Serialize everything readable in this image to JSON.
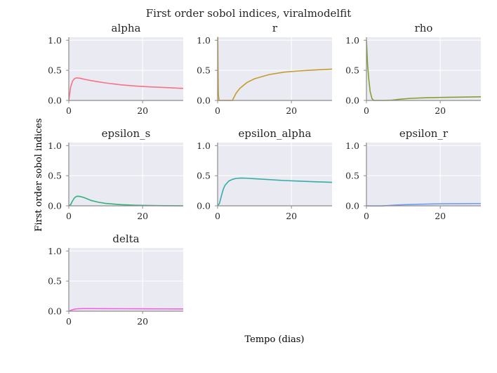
{
  "chart_data": {
    "type": "line",
    "title": "First order sobol indices, viralmodelfit",
    "xlabel": "Tempo (dias)",
    "ylabel": "First order sobol indices",
    "xlim": [
      0,
      31
    ],
    "ylim": [
      0,
      1.05
    ],
    "xticks": [
      "0",
      "20"
    ],
    "yticks": [
      "0.0",
      "0.5",
      "1.0"
    ],
    "grid": true,
    "background": "#eaeaf2",
    "series": [
      {
        "name": "alpha",
        "color": "#f77189",
        "x": [
          0,
          0.5,
          1,
          1.5,
          2,
          3,
          4,
          6,
          8,
          10,
          14,
          18,
          22,
          26,
          31
        ],
        "y": [
          0.0,
          0.22,
          0.32,
          0.36,
          0.375,
          0.37,
          0.355,
          0.33,
          0.31,
          0.29,
          0.26,
          0.24,
          0.225,
          0.215,
          0.2
        ]
      },
      {
        "name": "r",
        "color": "#c69a2d",
        "x": [
          0,
          0.05,
          0.1,
          0.2,
          0.4,
          1,
          2,
          3,
          4,
          5,
          6,
          8,
          10,
          14,
          18,
          22,
          26,
          31
        ],
        "y": [
          1.05,
          1.05,
          0.6,
          0.1,
          0.0,
          0.0,
          0.0,
          0.0,
          0.0,
          0.12,
          0.2,
          0.3,
          0.36,
          0.43,
          0.47,
          0.49,
          0.505,
          0.52
        ]
      },
      {
        "name": "rho",
        "color": "#82a031",
        "x": [
          0,
          0.3,
          0.6,
          1,
          1.5,
          2,
          3,
          5,
          7,
          9,
          12,
          16,
          20,
          25,
          31
        ],
        "y": [
          1.0,
          0.6,
          0.38,
          0.15,
          0.03,
          0.0,
          0.0,
          0.0,
          0.005,
          0.02,
          0.035,
          0.045,
          0.05,
          0.055,
          0.06
        ]
      },
      {
        "name": "epsilon_s",
        "color": "#33b07a",
        "x": [
          0,
          0.5,
          1,
          1.5,
          2,
          2.5,
          3,
          4,
          5,
          6,
          8,
          10,
          14,
          18,
          22,
          26,
          31
        ],
        "y": [
          0.0,
          0.02,
          0.08,
          0.13,
          0.155,
          0.16,
          0.155,
          0.14,
          0.115,
          0.09,
          0.06,
          0.04,
          0.02,
          0.01,
          0.005,
          0.002,
          0.0
        ]
      },
      {
        "name": "epsilon_alpha",
        "color": "#36ada4",
        "x": [
          0,
          0.5,
          1,
          1.5,
          2,
          3,
          4,
          5,
          6,
          7,
          8,
          10,
          14,
          18,
          22,
          26,
          31
        ],
        "y": [
          0.0,
          0.04,
          0.16,
          0.27,
          0.34,
          0.41,
          0.44,
          0.455,
          0.46,
          0.46,
          0.458,
          0.45,
          0.435,
          0.42,
          0.41,
          0.4,
          0.39
        ]
      },
      {
        "name": "epsilon_r",
        "color": "#6e9bf4",
        "x": [
          0,
          1,
          2,
          3,
          4,
          6,
          8,
          10,
          14,
          18,
          22,
          26,
          31
        ],
        "y": [
          0.0,
          -0.005,
          -0.01,
          -0.008,
          -0.003,
          0.005,
          0.012,
          0.018,
          0.026,
          0.031,
          0.034,
          0.036,
          0.038
        ]
      },
      {
        "name": "delta",
        "color": "#f461dd",
        "x": [
          0,
          0.5,
          1,
          1.5,
          2,
          3,
          4,
          6,
          10,
          14,
          18,
          22,
          26,
          31
        ],
        "y": [
          0.0,
          0.012,
          0.025,
          0.033,
          0.038,
          0.042,
          0.043,
          0.043,
          0.042,
          0.041,
          0.04,
          0.039,
          0.038,
          0.037
        ]
      }
    ]
  }
}
